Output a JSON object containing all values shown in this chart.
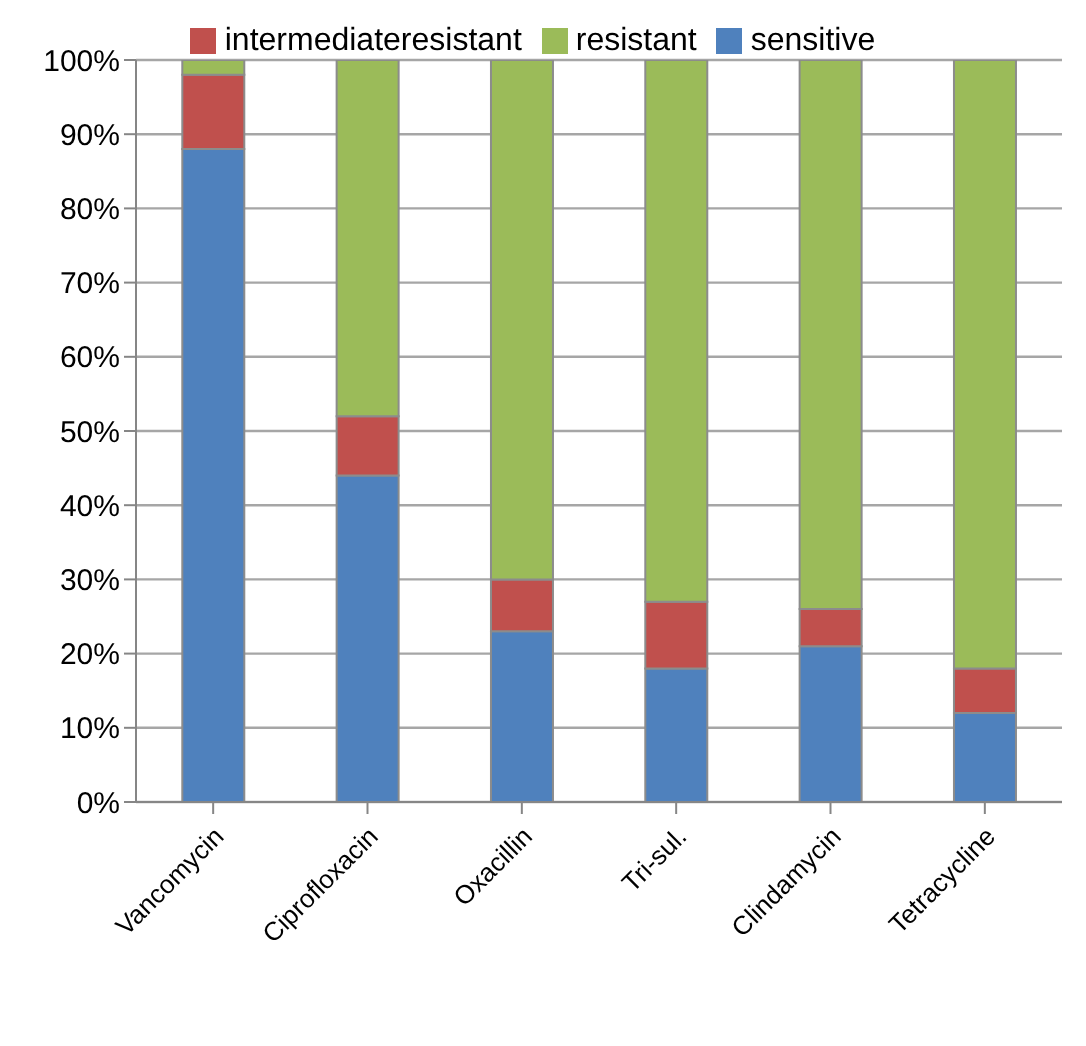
{
  "chart_data": {
    "type": "bar",
    "stacked": true,
    "categories": [
      "Vancomycin",
      "Ciprofloxacin",
      "Oxacillin",
      "Tri-sul.",
      "Clindamycin",
      "Tetracycline"
    ],
    "series": [
      {
        "name": "sensitive",
        "color": "#4f81bd",
        "values": [
          88,
          44,
          23,
          18,
          21,
          12
        ]
      },
      {
        "name": "intermediateresistant",
        "color": "#c0504d",
        "values": [
          10,
          8,
          7,
          9,
          5,
          6
        ]
      },
      {
        "name": "resistant",
        "color": "#9bbb59",
        "values": [
          2,
          48,
          70,
          73,
          74,
          82
        ]
      }
    ],
    "ylim": [
      0,
      100
    ],
    "yticks": [
      {
        "value": 0,
        "label": "0%"
      },
      {
        "value": 10,
        "label": "10%"
      },
      {
        "value": 20,
        "label": "20%"
      },
      {
        "value": 30,
        "label": "30%"
      },
      {
        "value": 40,
        "label": "40%"
      },
      {
        "value": 50,
        "label": "50%"
      },
      {
        "value": 60,
        "label": "60%"
      },
      {
        "value": 70,
        "label": "70%"
      },
      {
        "value": 80,
        "label": "80%"
      },
      {
        "value": 90,
        "label": "90%"
      },
      {
        "value": 100,
        "label": "100%"
      }
    ],
    "grid": "y",
    "legend": "top"
  }
}
